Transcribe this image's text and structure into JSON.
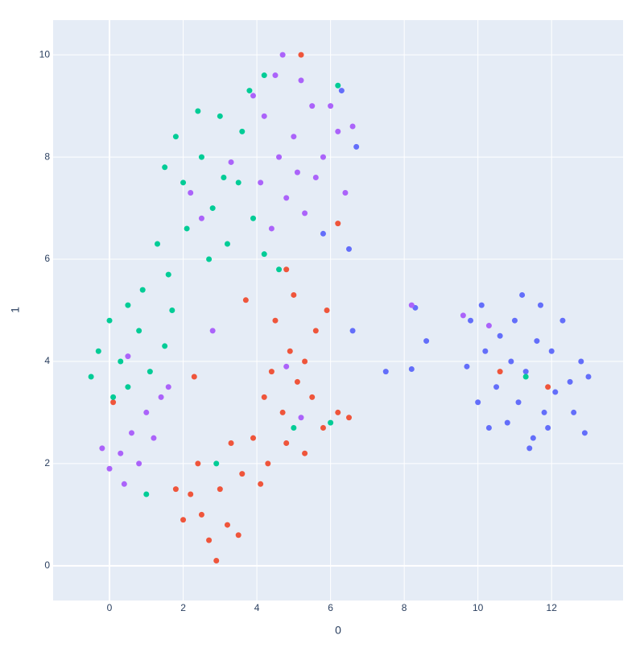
{
  "chart_data": {
    "type": "scatter",
    "x_label": "0",
    "y_label": "1",
    "xlim": [
      -1.53,
      13.94
    ],
    "ylim": [
      -0.68,
      10.68
    ],
    "xticks": [
      0,
      2,
      4,
      6,
      8,
      10,
      12
    ],
    "yticks": [
      0,
      2,
      4,
      6,
      8,
      10
    ],
    "grid": true,
    "background": "#e5ecf6",
    "series": [
      {
        "color": "#636efa",
        "x": [
          11.3,
          10.5,
          12,
          11,
          11.8,
          10.2,
          12.5,
          11.5,
          10.8,
          12.3,
          11.2,
          10,
          12.8,
          11.6,
          10.6,
          11.9,
          12.6,
          10.3,
          11.1,
          11.7,
          10.9,
          12.1,
          9.8,
          13,
          11.4,
          9.7,
          7.5,
          8.2,
          8.6,
          8.3,
          6.7,
          6.5,
          6.6,
          6.3,
          5.8,
          12.9,
          10.1
        ],
        "y": [
          3.8,
          3.5,
          4.2,
          4.8,
          3,
          4.2,
          3.6,
          2.5,
          2.8,
          4.8,
          5.3,
          3.2,
          4,
          4.4,
          4.5,
          2.7,
          3,
          2.7,
          3.2,
          5.1,
          4,
          3.4,
          4.8,
          3.7,
          2.3,
          3.9,
          3.8,
          3.85,
          4.4,
          5.05,
          8.2,
          6.2,
          4.6,
          9.3,
          6.5,
          2.6,
          5.1
        ]
      },
      {
        "color": "#ef553b",
        "x": [
          2.7,
          2.5,
          3,
          3.2,
          2.2,
          2.9,
          2.4,
          3.6,
          3.9,
          4.3,
          4.8,
          5.3,
          5.8,
          6.2,
          5.5,
          4.7,
          4.4,
          4.9,
          4.5,
          5,
          4.8,
          5.3,
          5.6,
          4.2,
          5.1,
          3.3,
          2,
          3.5,
          1.8,
          4.1,
          5.9,
          6.5,
          6.2,
          5.2,
          0.1,
          2.3,
          3.7,
          11.9,
          10.6
        ],
        "y": [
          0.5,
          1,
          1.5,
          0.8,
          1.4,
          0.1,
          2,
          1.8,
          2.5,
          2,
          2.4,
          2.2,
          2.7,
          3,
          3.3,
          3,
          3.8,
          4.2,
          4.8,
          5.3,
          5.8,
          4,
          4.6,
          3.3,
          3.6,
          2.4,
          0.9,
          0.6,
          1.5,
          1.6,
          5,
          2.9,
          6.7,
          10,
          3.2,
          3.7,
          5.2,
          3.5,
          3.8
        ]
      },
      {
        "color": "#00cc96",
        "x": [
          2.5,
          2,
          1.5,
          3,
          2.8,
          3.5,
          3.2,
          2.4,
          1.8,
          3.8,
          4.2,
          2.1,
          3.6,
          2.7,
          3.9,
          1.3,
          4.2,
          1.6,
          0.3,
          -0.3,
          0.8,
          0.5,
          1.1,
          0.1,
          0.9,
          -0.5,
          1.5,
          0,
          0.5,
          1.7,
          4.6,
          5,
          6,
          2.9,
          11.3,
          1,
          3.1,
          6.2
        ],
        "y": [
          8,
          7.5,
          7.8,
          8.8,
          7,
          7.5,
          6.3,
          8.9,
          8.4,
          9.3,
          9.6,
          6.6,
          8.5,
          6,
          6.8,
          6.3,
          6.1,
          5.7,
          4,
          4.2,
          4.6,
          5.1,
          3.8,
          3.3,
          5.4,
          3.7,
          4.3,
          4.8,
          3.5,
          5,
          5.8,
          2.7,
          2.8,
          2,
          3.7,
          1.4,
          7.6,
          9.4
        ]
      },
      {
        "color": "#ab63fa",
        "x": [
          5,
          4.5,
          4.7,
          5.5,
          4.2,
          4.1,
          4.8,
          5.6,
          6.2,
          5.8,
          5.3,
          4.4,
          6.4,
          6.6,
          5.2,
          4.6,
          5.1,
          6,
          3.9,
          0.3,
          0,
          0.6,
          1,
          1.4,
          0.4,
          0.8,
          1.6,
          -0.2,
          1.2,
          2.5,
          3.3,
          2.2,
          0.5,
          2.8,
          4.8,
          5.2,
          8.2,
          9.6,
          10.3
        ],
        "y": [
          8.4,
          9.6,
          10,
          9,
          8.8,
          7.5,
          7.2,
          7.6,
          8.5,
          8,
          6.9,
          6.6,
          7.3,
          8.6,
          9.5,
          8,
          7.7,
          9,
          9.2,
          2.2,
          1.9,
          2.6,
          3,
          3.3,
          1.6,
          2,
          3.5,
          2.3,
          2.5,
          6.8,
          7.9,
          7.3,
          4.1,
          4.6,
          3.9,
          2.9,
          5.1,
          4.9,
          4.7
        ]
      }
    ]
  }
}
